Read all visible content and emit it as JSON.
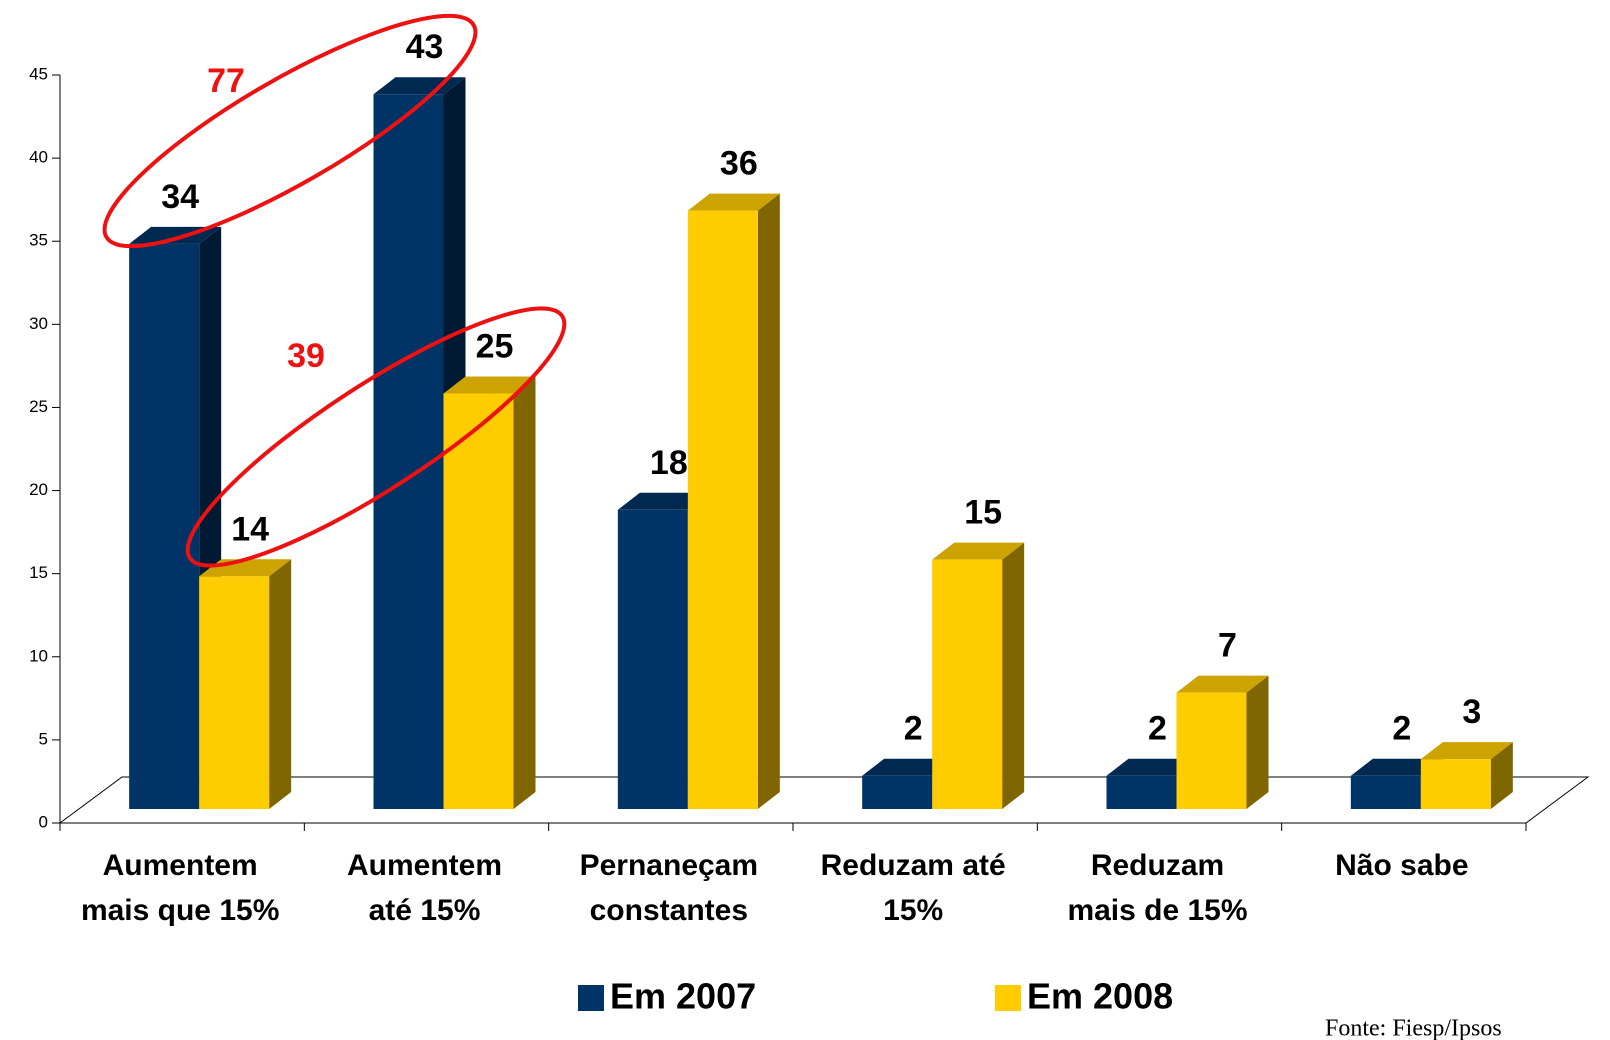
{
  "chart_data": {
    "type": "bar3d",
    "categories": [
      "Aumentem\nmais que 15%",
      "Aumentem\naté 15%",
      "Pernaneçam\nconstantes",
      "Reduzam até\n15%",
      "Reduzam\nmais de 15%",
      "Não sabe"
    ],
    "series": [
      {
        "name": "Em 2007",
        "color": "#003366",
        "values": [
          34,
          43,
          18,
          2,
          2,
          2
        ]
      },
      {
        "name": "Em 2008",
        "color": "#ffcc00",
        "values": [
          14,
          25,
          36,
          15,
          7,
          3
        ]
      }
    ],
    "ylim": [
      0,
      45
    ],
    "yticks": [
      0,
      5,
      10,
      15,
      20,
      25,
      30,
      35,
      40,
      45
    ],
    "annotations": [
      "77",
      "39"
    ],
    "source": "Fonte: Fiesp/Ipsos"
  }
}
